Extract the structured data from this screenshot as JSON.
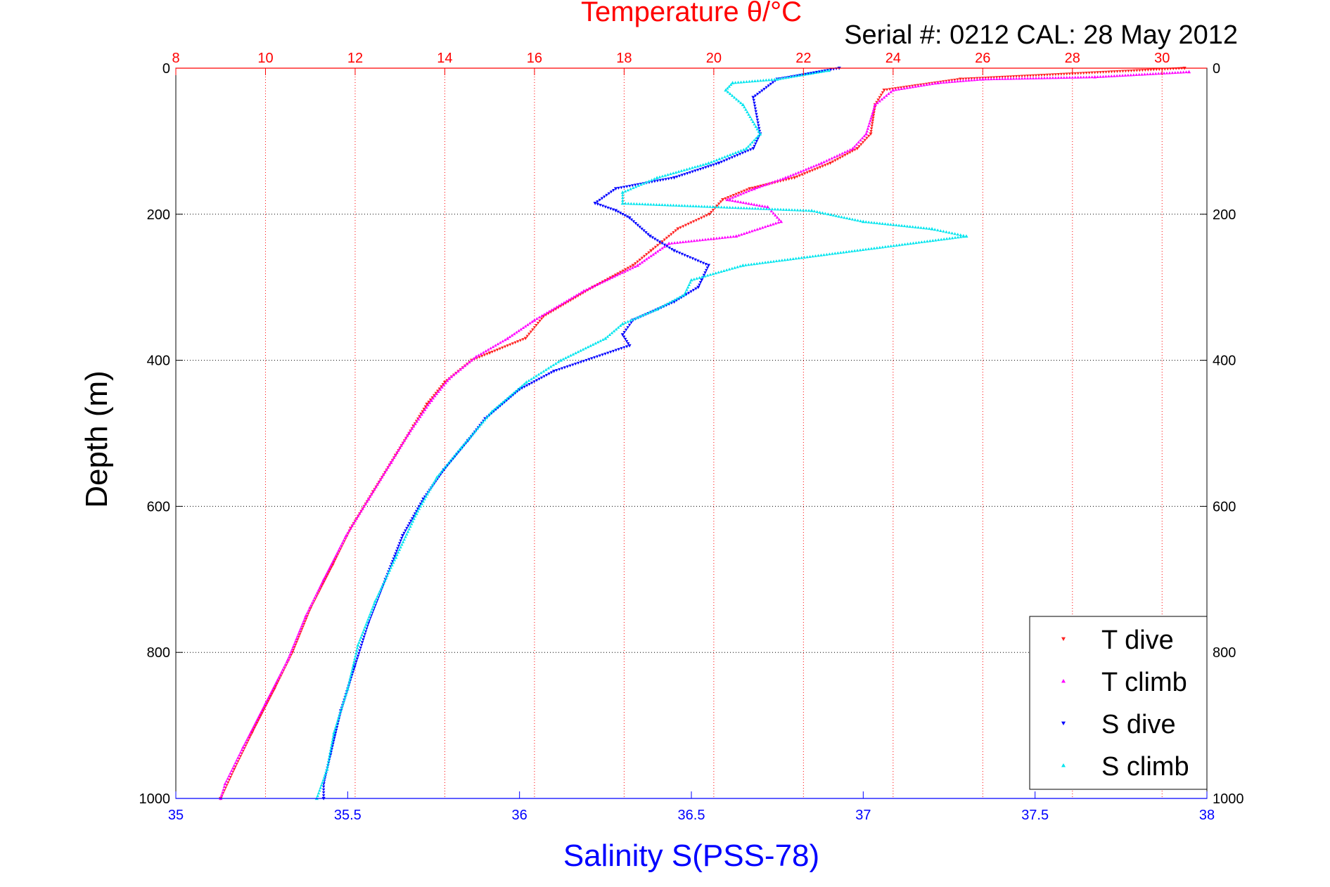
{
  "chart_data": {
    "type": "scatter",
    "title": "Temperature θ/°C",
    "subtitle": "Serial #: 0212  CAL: 28 May 2012",
    "xlabel": "Salinity S(PSS-78)",
    "ylabel": "Depth (m)",
    "ylim": [
      0,
      1000
    ],
    "y_reversed": true,
    "xlim_bottom": [
      35,
      38
    ],
    "xlim_top": [
      8,
      31
    ],
    "y_ticks": [
      "0",
      "200",
      "400",
      "600",
      "800",
      "1000"
    ],
    "x_bottom_ticks": [
      "35",
      "35.5",
      "36",
      "36.5",
      "37",
      "37.5",
      "38"
    ],
    "x_top_ticks": [
      "8",
      "10",
      "12",
      "14",
      "16",
      "18",
      "20",
      "22",
      "24",
      "26",
      "28",
      "30"
    ],
    "legend_position": "bottom-right",
    "grid": true,
    "colors": {
      "temperature_axis": "#ff0000",
      "salinity_axis": "#0000ff",
      "T_dive": "#ff2020",
      "T_climb": "#ff00ff",
      "S_dive": "#0000ff",
      "S_climb": "#00e5ee"
    },
    "series": [
      {
        "name": "T dive",
        "axis": "temperature",
        "marker": "triangle-down",
        "points": [
          [
            30.5,
            0
          ],
          [
            25.5,
            15
          ],
          [
            23.8,
            30
          ],
          [
            23.6,
            50
          ],
          [
            23.5,
            90
          ],
          [
            23.2,
            110
          ],
          [
            22.6,
            130
          ],
          [
            21.8,
            150
          ],
          [
            20.8,
            165
          ],
          [
            20.2,
            180
          ],
          [
            19.9,
            200
          ],
          [
            19.2,
            220
          ],
          [
            18.6,
            250
          ],
          [
            18.2,
            270
          ],
          [
            17.3,
            300
          ],
          [
            16.2,
            340
          ],
          [
            15.8,
            370
          ],
          [
            15.0,
            390
          ],
          [
            14.6,
            400
          ],
          [
            14.0,
            430
          ],
          [
            13.6,
            460
          ],
          [
            13.3,
            490
          ],
          [
            12.9,
            530
          ],
          [
            12.4,
            580
          ],
          [
            11.9,
            630
          ],
          [
            11.5,
            680
          ],
          [
            11.0,
            740
          ],
          [
            10.6,
            800
          ],
          [
            10.2,
            850
          ],
          [
            9.7,
            910
          ],
          [
            9.3,
            960
          ],
          [
            9.0,
            1000
          ]
        ]
      },
      {
        "name": "T climb",
        "axis": "temperature",
        "marker": "triangle-up",
        "points": [
          [
            30.6,
            5
          ],
          [
            28.5,
            12
          ],
          [
            26.0,
            15
          ],
          [
            25.0,
            20
          ],
          [
            24.0,
            30
          ],
          [
            23.6,
            50
          ],
          [
            23.4,
            90
          ],
          [
            23.1,
            110
          ],
          [
            22.4,
            130
          ],
          [
            21.6,
            150
          ],
          [
            20.9,
            165
          ],
          [
            20.3,
            180
          ],
          [
            21.2,
            190
          ],
          [
            21.5,
            210
          ],
          [
            20.5,
            230
          ],
          [
            19.0,
            240
          ],
          [
            18.3,
            270
          ],
          [
            17.1,
            305
          ],
          [
            16.0,
            345
          ],
          [
            15.4,
            370
          ],
          [
            14.7,
            395
          ],
          [
            14.1,
            425
          ],
          [
            13.7,
            455
          ],
          [
            13.2,
            500
          ],
          [
            12.8,
            540
          ],
          [
            12.3,
            590
          ],
          [
            11.8,
            640
          ],
          [
            11.3,
            700
          ],
          [
            10.9,
            750
          ],
          [
            10.5,
            810
          ],
          [
            10.0,
            870
          ],
          [
            9.5,
            930
          ],
          [
            9.1,
            980
          ],
          [
            9.0,
            1000
          ]
        ]
      },
      {
        "name": "S dive",
        "axis": "salinity",
        "marker": "triangle-down",
        "points": [
          [
            36.93,
            0
          ],
          [
            36.75,
            15
          ],
          [
            36.68,
            40
          ],
          [
            36.7,
            90
          ],
          [
            36.68,
            110
          ],
          [
            36.58,
            130
          ],
          [
            36.45,
            150
          ],
          [
            36.28,
            165
          ],
          [
            36.22,
            185
          ],
          [
            36.28,
            195
          ],
          [
            36.32,
            205
          ],
          [
            36.38,
            230
          ],
          [
            36.45,
            250
          ],
          [
            36.55,
            270
          ],
          [
            36.53,
            290
          ],
          [
            36.52,
            300
          ],
          [
            36.45,
            320
          ],
          [
            36.33,
            345
          ],
          [
            36.3,
            365
          ],
          [
            36.32,
            380
          ],
          [
            36.1,
            415
          ],
          [
            36.0,
            440
          ],
          [
            35.9,
            480
          ],
          [
            35.85,
            510
          ],
          [
            35.78,
            550
          ],
          [
            35.72,
            590
          ],
          [
            35.66,
            640
          ],
          [
            35.61,
            700
          ],
          [
            35.56,
            760
          ],
          [
            35.52,
            820
          ],
          [
            35.48,
            880
          ],
          [
            35.45,
            940
          ],
          [
            35.43,
            980
          ],
          [
            35.43,
            1000
          ]
        ]
      },
      {
        "name": "S climb",
        "axis": "salinity",
        "marker": "triangle-up",
        "points": [
          [
            36.9,
            3
          ],
          [
            36.75,
            15
          ],
          [
            36.62,
            20
          ],
          [
            36.6,
            30
          ],
          [
            36.65,
            50
          ],
          [
            36.7,
            90
          ],
          [
            36.66,
            110
          ],
          [
            36.55,
            130
          ],
          [
            36.4,
            150
          ],
          [
            36.3,
            170
          ],
          [
            36.3,
            185
          ],
          [
            36.85,
            195
          ],
          [
            37.0,
            210
          ],
          [
            37.2,
            220
          ],
          [
            37.3,
            230
          ],
          [
            36.65,
            270
          ],
          [
            36.5,
            290
          ],
          [
            36.48,
            310
          ],
          [
            36.4,
            330
          ],
          [
            36.3,
            350
          ],
          [
            36.25,
            370
          ],
          [
            36.12,
            400
          ],
          [
            36.02,
            430
          ],
          [
            35.92,
            470
          ],
          [
            35.83,
            520
          ],
          [
            35.76,
            560
          ],
          [
            35.7,
            610
          ],
          [
            35.64,
            670
          ],
          [
            35.58,
            730
          ],
          [
            35.53,
            790
          ],
          [
            35.5,
            850
          ],
          [
            35.46,
            910
          ],
          [
            35.44,
            960
          ],
          [
            35.41,
            1000
          ]
        ]
      }
    ]
  },
  "legend": {
    "items": [
      {
        "label": "T dive"
      },
      {
        "label": "T climb"
      },
      {
        "label": "S dive"
      },
      {
        "label": "S climb"
      }
    ]
  }
}
